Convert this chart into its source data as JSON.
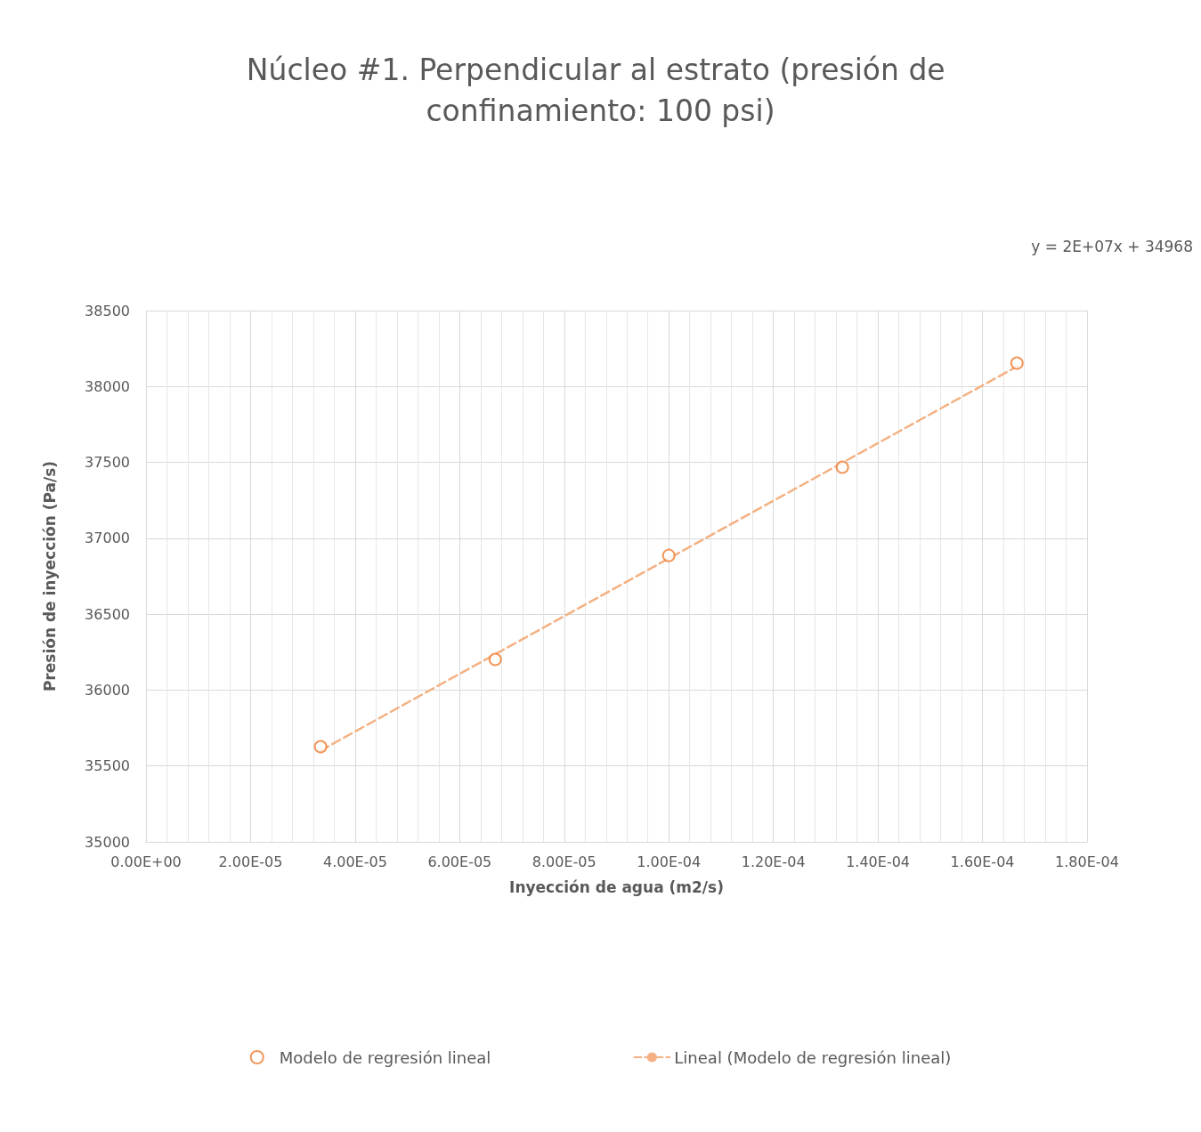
{
  "chart_data": {
    "type": "scatter",
    "title": "Núcleo #1. Perpendicular al estrato (presión de confinamiento: 100 psi)",
    "xlabel": "Inyección de agua (m2/s)",
    "ylabel": "Presión de inyección (Pa/s)",
    "annotations": [
      "y = 2E+07x + 34968"
    ],
    "series": [
      {
        "name": "Modelo de regresión lineal",
        "color": "#ed7d31",
        "marker": "circle",
        "x": [
          3.34e-05,
          6.68e-05,
          0.0001,
          0.0001332,
          0.0001666
        ],
        "values": [
          35627,
          36202,
          36887,
          37468,
          38154
        ]
      },
      {
        "name": "Lineal (Modelo de regresión lineal)",
        "type": "line",
        "color": "#f4b183",
        "marker": "none",
        "line_style": "dashed",
        "x": [
          3.34e-05,
          0.0001666
        ],
        "values": [
          35602,
          38132
        ]
      }
    ],
    "xlim": [
      0,
      0.00018
    ],
    "xticks": [
      {
        "value": 0,
        "label": "0.00E+00"
      },
      {
        "value": 2e-05,
        "label": "2.00E-05"
      },
      {
        "value": 4e-05,
        "label": "4.00E-05"
      },
      {
        "value": 6e-05,
        "label": "6.00E-05"
      },
      {
        "value": 8e-05,
        "label": "8.00E-05"
      },
      {
        "value": 0.0001,
        "label": "1.00E-04"
      },
      {
        "value": 0.00012,
        "label": "1.20E-04"
      },
      {
        "value": 0.00014,
        "label": "1.40E-04"
      },
      {
        "value": 0.00016,
        "label": "1.60E-04"
      },
      {
        "value": 0.00018,
        "label": "1.80E-04"
      }
    ],
    "ylim": [
      35000,
      38500
    ],
    "yticks": [
      35000,
      35500,
      36000,
      36500,
      37000,
      37500,
      38000,
      38500
    ],
    "grid": true,
    "legend": "bottom"
  }
}
